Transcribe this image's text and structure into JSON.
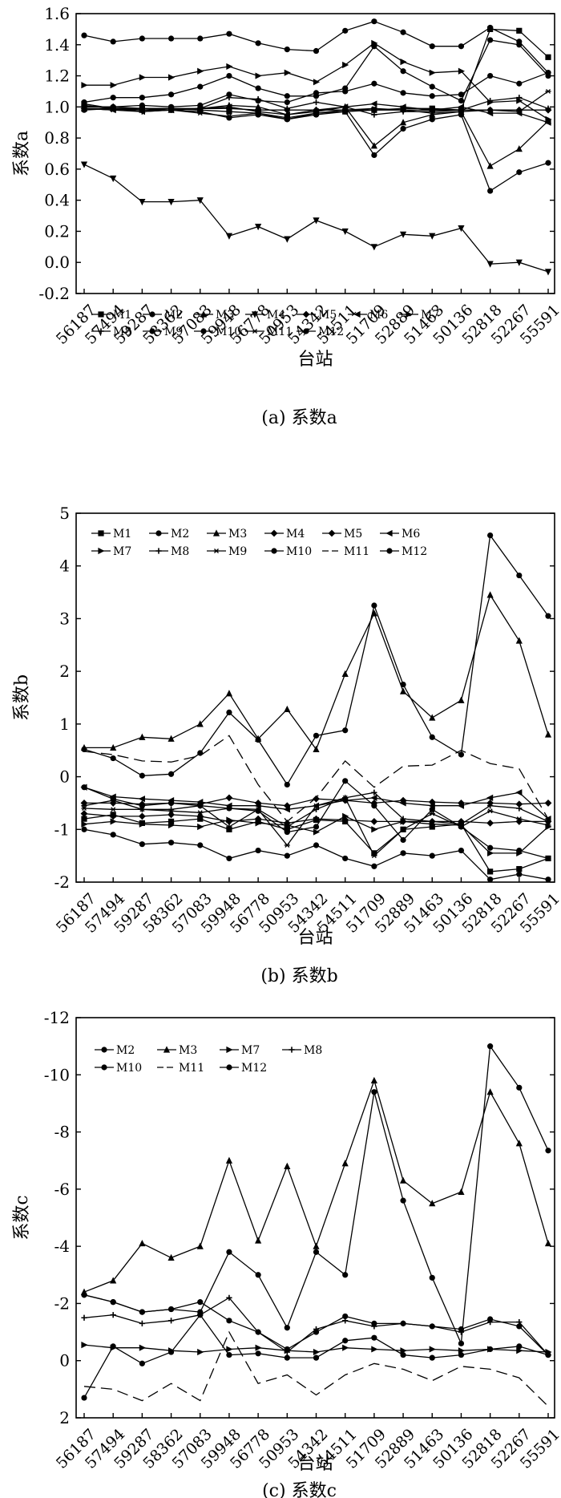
{
  "stations": [
    "56187",
    "57494",
    "59287",
    "58362",
    "57083",
    "59948",
    "56778",
    "50953",
    "54342",
    "54511",
    "51709",
    "52889",
    "51463",
    "50136",
    "52818",
    "52267",
    "55591"
  ],
  "chart_data": [
    {
      "type": "line",
      "caption": "(a) 系数a",
      "xlabel": "台站",
      "ylabel": "系数a",
      "ylim": [
        -0.2,
        1.6
      ],
      "yticks": [
        "-0.2",
        "0.0",
        "0.2",
        "0.4",
        "0.6",
        "0.8",
        "1.0",
        "1.2",
        "1.4",
        "1.6"
      ],
      "inverted": false,
      "legend": "bottom",
      "grid": false,
      "series": [
        {
          "name": "M1",
          "marker": "square",
          "values": [
            1.02,
            0.99,
            0.99,
            0.99,
            0.98,
            0.97,
            0.96,
            0.93,
            0.96,
            0.97,
            0.98,
            0.99,
            0.99,
            0.98,
            1.5,
            1.49,
            1.32
          ]
        },
        {
          "name": "M2",
          "marker": "circle",
          "values": [
            1.46,
            1.42,
            1.44,
            1.44,
            1.44,
            1.47,
            1.41,
            1.37,
            1.36,
            1.49,
            1.55,
            1.48,
            1.39,
            1.39,
            1.51,
            1.42,
            1.22
          ]
        },
        {
          "name": "M3",
          "marker": "triangle",
          "values": [
            0.99,
            0.99,
            0.98,
            0.98,
            0.99,
            1.01,
            1.0,
            0.95,
            0.98,
            1.0,
            0.75,
            0.9,
            0.95,
            0.97,
            0.62,
            0.73,
            0.91
          ]
        },
        {
          "name": "M4",
          "marker": "tri-down",
          "values": [
            0.63,
            0.54,
            0.39,
            0.39,
            0.4,
            0.17,
            0.23,
            0.15,
            0.27,
            0.2,
            0.1,
            0.18,
            0.17,
            0.22,
            -0.01,
            0.0,
            -0.06
          ]
        },
        {
          "name": "M5",
          "marker": "diamond",
          "values": [
            1.0,
            1.0,
            0.99,
            0.99,
            0.99,
            0.99,
            0.98,
            0.98,
            0.98,
            0.98,
            0.98,
            0.98,
            0.98,
            0.98,
            0.98,
            0.98,
            0.98
          ]
        },
        {
          "name": "M6",
          "marker": "tri-left",
          "values": [
            0.99,
            0.98,
            0.97,
            0.98,
            0.99,
            1.0,
            0.97,
            0.95,
            0.97,
            1.0,
            1.02,
            1.0,
            0.98,
            1.0,
            0.96,
            0.96,
            0.9
          ]
        },
        {
          "name": "M7",
          "marker": "tri-right",
          "values": [
            1.14,
            1.14,
            1.19,
            1.19,
            1.23,
            1.26,
            1.2,
            1.22,
            1.16,
            1.27,
            1.41,
            1.29,
            1.22,
            1.23,
            1.03,
            1.04,
            0.92
          ]
        },
        {
          "name": "M8",
          "marker": "plus",
          "values": [
            1.01,
            0.99,
            0.97,
            0.98,
            0.99,
            1.06,
            1.05,
            0.99,
            1.03,
            1.0,
            0.95,
            0.97,
            0.97,
            0.98,
            1.04,
            1.06,
            0.99
          ]
        },
        {
          "name": "M9",
          "marker": "circle",
          "values": [
            0.98,
            0.99,
            0.98,
            0.98,
            0.97,
            0.93,
            0.95,
            0.92,
            0.95,
            0.97,
            0.69,
            0.86,
            0.92,
            0.95,
            0.46,
            0.58,
            0.64
          ]
        },
        {
          "name": "M10",
          "marker": "circle",
          "values": [
            1.03,
            1.06,
            1.06,
            1.08,
            1.13,
            1.2,
            1.12,
            1.07,
            1.07,
            1.12,
            1.39,
            1.23,
            1.13,
            1.04,
            1.43,
            1.4,
            1.2
          ]
        },
        {
          "name": "M11",
          "marker": "star",
          "values": [
            0.99,
            0.98,
            0.99,
            0.98,
            0.96,
            0.94,
            0.96,
            0.92,
            0.96,
            0.98,
            0.99,
            0.98,
            0.96,
            0.97,
            0.98,
            0.97,
            1.1
          ]
        },
        {
          "name": "M12",
          "marker": "circle",
          "values": [
            1.0,
            1.0,
            1.01,
            1.0,
            1.01,
            1.08,
            1.04,
            1.03,
            1.09,
            1.1,
            1.15,
            1.09,
            1.07,
            1.08,
            1.2,
            1.15,
            1.22
          ]
        }
      ]
    },
    {
      "type": "line",
      "caption": "(b) 系数b",
      "xlabel": "台站",
      "ylabel": "系数b",
      "ylim": [
        -2,
        5
      ],
      "yticks": [
        "-2",
        "-1",
        "0",
        "1",
        "2",
        "3",
        "4",
        "5"
      ],
      "inverted": false,
      "legend": "top",
      "grid": false,
      "series": [
        {
          "name": "M1",
          "marker": "square",
          "values": [
            -0.8,
            -0.72,
            -0.88,
            -0.85,
            -0.8,
            -1.0,
            -0.85,
            -1.0,
            -0.82,
            -0.85,
            -1.45,
            -1.0,
            -0.95,
            -0.9,
            -1.8,
            -1.75,
            -1.55
          ]
        },
        {
          "name": "M2",
          "marker": "circle",
          "values": [
            -1.0,
            -1.1,
            -1.28,
            -1.25,
            -1.3,
            -1.55,
            -1.4,
            -1.5,
            -1.3,
            -1.55,
            -1.7,
            -1.45,
            -1.5,
            -1.4,
            -1.95,
            -1.85,
            -1.95
          ]
        },
        {
          "name": "M3",
          "marker": "triangle",
          "values": [
            0.55,
            0.55,
            0.75,
            0.72,
            1.0,
            1.58,
            0.72,
            1.28,
            0.52,
            1.95,
            3.1,
            1.62,
            1.12,
            1.45,
            3.45,
            2.58,
            0.8
          ]
        },
        {
          "name": "M4",
          "marker": "diamond",
          "values": [
            -0.5,
            -0.5,
            -0.52,
            -0.5,
            -0.52,
            -0.4,
            -0.5,
            -0.55,
            -0.42,
            -0.45,
            -0.5,
            -0.45,
            -0.48,
            -0.5,
            -0.5,
            -0.52,
            -0.5
          ]
        },
        {
          "name": "M5",
          "marker": "diamond",
          "values": [
            -0.7,
            -0.75,
            -0.75,
            -0.72,
            -0.75,
            -0.85,
            -0.8,
            -0.88,
            -0.8,
            -0.82,
            -0.85,
            -0.85,
            -0.85,
            -0.85,
            -0.88,
            -0.85,
            -0.85
          ]
        },
        {
          "name": "M6",
          "marker": "tri-left",
          "values": [
            -0.2,
            -0.38,
            -0.42,
            -0.45,
            -0.48,
            -0.55,
            -0.55,
            -0.62,
            -0.55,
            -0.45,
            -0.4,
            -0.5,
            -0.55,
            -0.55,
            -0.4,
            -0.3,
            -0.8
          ]
        },
        {
          "name": "M7",
          "marker": "tri-right",
          "values": [
            -0.9,
            -0.85,
            -0.9,
            -0.92,
            -0.95,
            -0.82,
            -0.88,
            -0.92,
            -1.05,
            -0.75,
            -1.0,
            -0.85,
            -0.9,
            -0.92,
            -1.45,
            -1.45,
            -0.95
          ]
        },
        {
          "name": "M8",
          "marker": "plus",
          "values": [
            -0.55,
            -0.45,
            -0.62,
            -0.62,
            -0.55,
            -0.95,
            -0.62,
            -0.95,
            -0.62,
            -0.4,
            -0.3,
            -0.8,
            -0.85,
            -0.9,
            -0.55,
            -0.6,
            -0.85
          ]
        },
        {
          "name": "M9",
          "marker": "star",
          "values": [
            -0.6,
            -0.62,
            -0.62,
            -0.65,
            -0.68,
            -0.6,
            -0.62,
            -1.3,
            -0.55,
            -0.4,
            -1.5,
            -1.0,
            -0.7,
            -0.95,
            -0.65,
            -0.8,
            -0.92
          ]
        },
        {
          "name": "M10",
          "marker": "circle",
          "values": [
            0.52,
            0.35,
            0.02,
            0.05,
            0.45,
            1.22,
            0.7,
            -0.15,
            0.78,
            0.88,
            3.25,
            1.75,
            0.75,
            0.42,
            4.58,
            3.82,
            3.05
          ]
        },
        {
          "name": "M11",
          "marker": "dash",
          "values": [
            0.48,
            0.42,
            0.3,
            0.28,
            0.4,
            0.78,
            -0.15,
            -0.85,
            -0.4,
            0.3,
            -0.2,
            0.2,
            0.22,
            0.5,
            0.25,
            0.15,
            -0.8
          ]
        },
        {
          "name": "M12",
          "marker": "circle",
          "values": [
            -0.2,
            -0.42,
            -0.55,
            -0.5,
            -0.55,
            -0.6,
            -0.65,
            -1.05,
            -0.95,
            -0.08,
            -0.55,
            -1.2,
            -0.62,
            -0.95,
            -1.35,
            -1.4,
            -1.55
          ]
        }
      ]
    },
    {
      "type": "line",
      "caption": "(c) 系数c",
      "xlabel": "台站",
      "ylabel": "系数c",
      "ylim": [
        2,
        -12
      ],
      "yticks": [
        "2",
        "0",
        "-2",
        "-4",
        "-6",
        "-8",
        "-10",
        "-12"
      ],
      "inverted": true,
      "legend": "top",
      "grid": false,
      "series": [
        {
          "name": "M2",
          "marker": "circle",
          "values": [
            -2.3,
            -2.05,
            -1.7,
            -1.8,
            -2.05,
            -1.4,
            -1.0,
            -0.4,
            -1.0,
            -1.55,
            -1.3,
            -1.3,
            -1.2,
            -1.1,
            -1.45,
            -1.2,
            -0.2
          ]
        },
        {
          "name": "M3",
          "marker": "triangle",
          "values": [
            -2.4,
            -2.8,
            -4.1,
            -3.6,
            -4.0,
            -7.0,
            -4.2,
            -6.8,
            -4.0,
            -6.9,
            -9.8,
            -6.3,
            -5.5,
            -5.9,
            -9.4,
            -7.6,
            -4.1
          ]
        },
        {
          "name": "M7",
          "marker": "tri-right",
          "values": [
            -0.55,
            -0.45,
            -0.45,
            -0.35,
            -0.3,
            -0.4,
            -0.45,
            -0.35,
            -0.3,
            -0.45,
            -0.4,
            -0.35,
            -0.4,
            -0.35,
            -0.4,
            -0.35,
            -0.3
          ]
        },
        {
          "name": "M8",
          "marker": "plus",
          "values": [
            -1.5,
            -1.6,
            -1.3,
            -1.4,
            -1.6,
            -2.2,
            -1.0,
            -0.3,
            -1.1,
            -1.4,
            -1.2,
            -1.3,
            -1.2,
            -1.0,
            -1.35,
            -1.35,
            -0.2
          ]
        },
        {
          "name": "M10",
          "marker": "circle",
          "values": [
            -2.3,
            -2.05,
            -1.7,
            -1.8,
            -1.7,
            -3.8,
            -3.0,
            -1.15,
            -3.8,
            -3.0,
            -9.4,
            -5.6,
            -2.9,
            -0.6,
            -11.0,
            -9.55,
            -7.35
          ]
        },
        {
          "name": "M11",
          "marker": "dash",
          "values": [
            0.9,
            1.0,
            1.4,
            0.8,
            1.4,
            -1.0,
            0.8,
            0.5,
            1.2,
            0.5,
            0.1,
            0.3,
            0.7,
            0.2,
            0.3,
            0.6,
            1.6
          ]
        },
        {
          "name": "M12",
          "marker": "circle",
          "values": [
            1.3,
            -0.5,
            0.1,
            -0.3,
            -1.6,
            -0.2,
            -0.25,
            -0.1,
            -0.1,
            -0.7,
            -0.8,
            -0.2,
            -0.1,
            -0.2,
            -0.4,
            -0.5,
            -0.2
          ]
        }
      ]
    }
  ]
}
